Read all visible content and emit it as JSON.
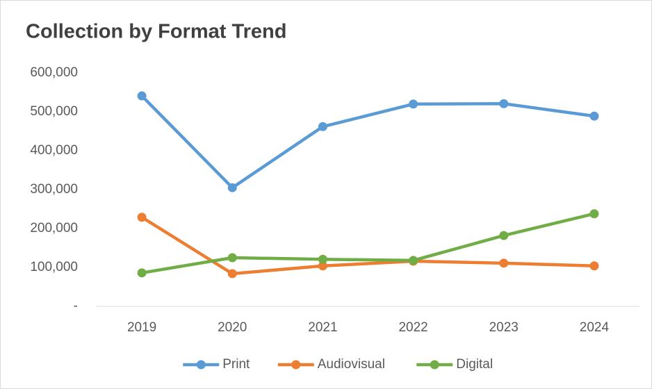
{
  "chart_data": {
    "type": "line",
    "title": "Collection by Format Trend",
    "categories": [
      "2019",
      "2020",
      "2021",
      "2022",
      "2023",
      "2024"
    ],
    "series": [
      {
        "name": "Print",
        "color": "#5b9bd5",
        "values": [
          541000,
          305000,
          462000,
          520000,
          521000,
          489000
        ]
      },
      {
        "name": "Audiovisual",
        "color": "#ed7d31",
        "values": [
          229000,
          84000,
          104000,
          116000,
          111000,
          104000
        ]
      },
      {
        "name": "Digital",
        "color": "#70ad47",
        "values": [
          86000,
          125000,
          121000,
          118000,
          182000,
          238000
        ]
      }
    ],
    "ylim": [
      0,
      600000
    ],
    "yticks": [
      {
        "value": 0,
        "label": "-"
      },
      {
        "value": 100000,
        "label": "100,000"
      },
      {
        "value": 200000,
        "label": "200,000"
      },
      {
        "value": 300000,
        "label": "300,000"
      },
      {
        "value": 400000,
        "label": "400,000"
      },
      {
        "value": 500000,
        "label": "500,000"
      },
      {
        "value": 600000,
        "label": "600,000"
      }
    ],
    "grid": false,
    "legend": "bottom"
  }
}
